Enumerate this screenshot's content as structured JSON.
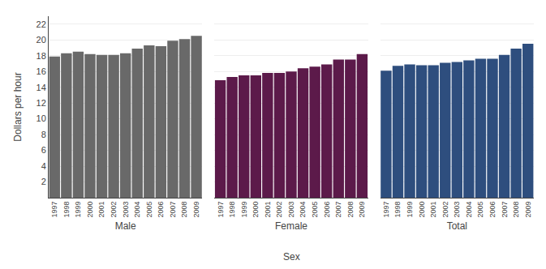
{
  "chart_data": {
    "type": "bar",
    "categories": [
      "1997",
      "1998",
      "1999",
      "2000",
      "2001",
      "2002",
      "2003",
      "2004",
      "2005",
      "2006",
      "2007",
      "2008",
      "2009"
    ],
    "series": [
      {
        "name": "Male",
        "color": "#696969",
        "values": [
          17.9,
          18.3,
          18.5,
          18.2,
          18.1,
          18.1,
          18.3,
          18.9,
          19.3,
          19.2,
          19.9,
          20.1,
          20.5
        ]
      },
      {
        "name": "Female",
        "color": "#5C1A4A",
        "values": [
          14.9,
          15.3,
          15.5,
          15.5,
          15.8,
          15.8,
          16.0,
          16.4,
          16.6,
          16.9,
          17.5,
          17.5,
          18.2
        ]
      },
      {
        "name": "Total",
        "color": "#2E4E7E",
        "values": [
          16.1,
          16.7,
          16.9,
          16.8,
          16.8,
          17.1,
          17.2,
          17.4,
          17.6,
          17.6,
          18.1,
          18.9,
          19.5
        ]
      }
    ],
    "xlabel": "Sex",
    "ylabel": "Dollars per hour",
    "ylim": [
      0,
      23
    ],
    "yticks": [
      2,
      4,
      6,
      8,
      10,
      12,
      14,
      16,
      18,
      20,
      22
    ],
    "grid": true
  }
}
